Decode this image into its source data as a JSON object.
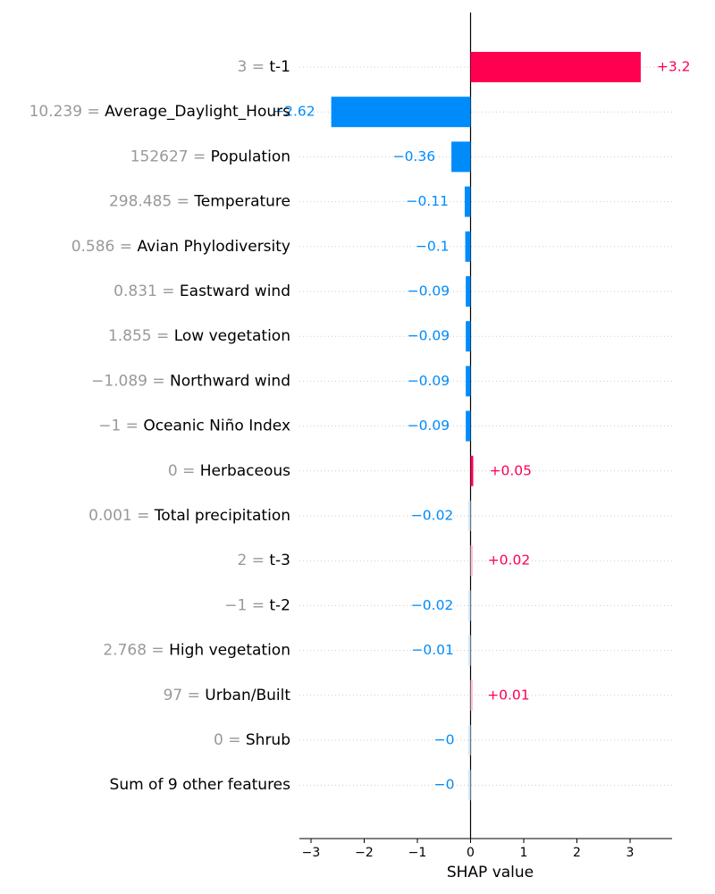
{
  "chart_data": {
    "type": "bar",
    "orientation": "horizontal",
    "title": "",
    "xlabel": "SHAP value",
    "ylabel": "",
    "xlim": [
      -3.3,
      3.8
    ],
    "xticks": [
      -3,
      -2,
      -1,
      0,
      1,
      2,
      3
    ],
    "xtick_labels": [
      "−3",
      "−2",
      "−1",
      "0",
      "1",
      "2",
      "3"
    ],
    "grid": "dotted horizontal row lines",
    "colors": {
      "positive": "#ff0051",
      "negative": "#008bfb",
      "positive_faint": "#ffc3d5",
      "negative_faint": "#d1e6fa"
    },
    "features": [
      {
        "value_text": "3",
        "name": "t-1",
        "shap": 3.2,
        "label": "+3.2"
      },
      {
        "value_text": "10.239",
        "name": "Average_Daylight_Hours",
        "shap": -2.62,
        "label": "−2.62"
      },
      {
        "value_text": "152627",
        "name": "Population",
        "shap": -0.36,
        "label": "−0.36"
      },
      {
        "value_text": "298.485",
        "name": "Temperature",
        "shap": -0.11,
        "label": "−0.11"
      },
      {
        "value_text": "0.586",
        "name": "Avian Phylodiversity",
        "shap": -0.1,
        "label": "−0.1"
      },
      {
        "value_text": "0.831",
        "name": "Eastward wind",
        "shap": -0.09,
        "label": "−0.09"
      },
      {
        "value_text": "1.855",
        "name": "Low vegetation",
        "shap": -0.09,
        "label": "−0.09"
      },
      {
        "value_text": "−1.089",
        "name": "Northward wind",
        "shap": -0.09,
        "label": "−0.09"
      },
      {
        "value_text": "−1",
        "name": "Oceanic Niño Index",
        "shap": -0.09,
        "label": "−0.09"
      },
      {
        "value_text": "0",
        "name": "Herbaceous",
        "shap": 0.05,
        "label": "+0.05"
      },
      {
        "value_text": "0.001",
        "name": "Total precipitation",
        "shap": -0.02,
        "label": "−0.02"
      },
      {
        "value_text": "2",
        "name": "t-3",
        "shap": 0.02,
        "label": "+0.02"
      },
      {
        "value_text": "−1",
        "name": "t-2",
        "shap": -0.02,
        "label": "−0.02"
      },
      {
        "value_text": "2.768",
        "name": "High vegetation",
        "shap": -0.01,
        "label": "−0.01"
      },
      {
        "value_text": "97",
        "name": "Urban/Built",
        "shap": 0.01,
        "label": "+0.01"
      },
      {
        "value_text": "0",
        "name": "Shrub",
        "shap": 0.0,
        "label": "−0"
      },
      {
        "value_text": "",
        "name": "Sum of 9 other features",
        "shap": 0.0,
        "label": "−0"
      }
    ]
  }
}
